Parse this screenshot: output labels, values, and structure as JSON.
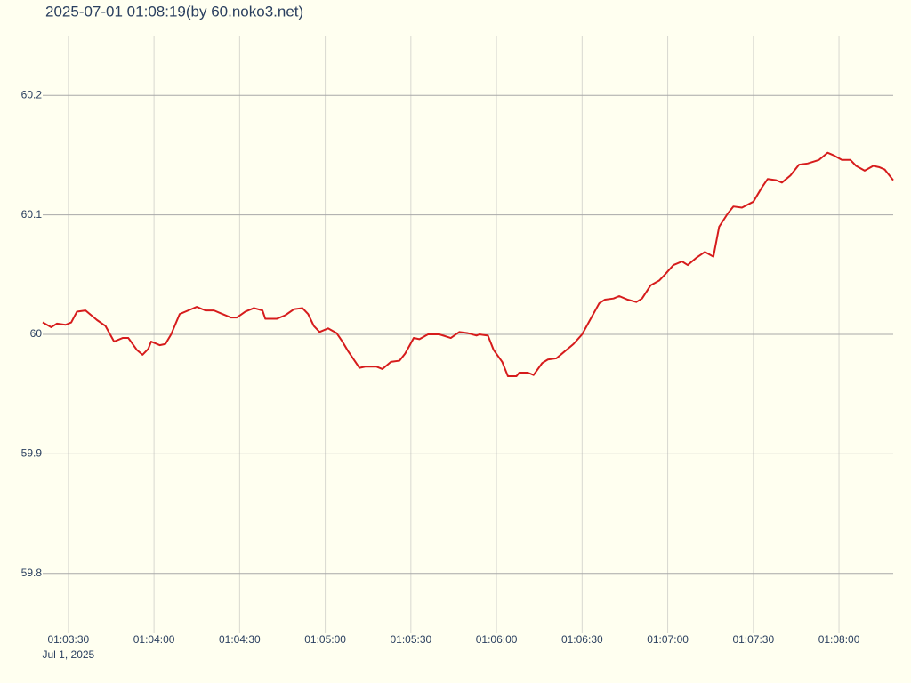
{
  "chart_data": {
    "type": "line",
    "title": "2025-07-01 01:08:19(by 60.noko3.net)",
    "x": [
      "2025-07-01 01:03:21",
      "2025-07-01 01:03:24",
      "2025-07-01 01:03:26",
      "2025-07-01 01:03:29",
      "2025-07-01 01:03:31",
      "2025-07-01 01:03:33",
      "2025-07-01 01:03:36",
      "2025-07-01 01:03:40",
      "2025-07-01 01:03:43",
      "2025-07-01 01:03:46",
      "2025-07-01 01:03:49",
      "2025-07-01 01:03:51",
      "2025-07-01 01:03:54",
      "2025-07-01 01:03:56",
      "2025-07-01 01:03:58",
      "2025-07-01 01:03:59",
      "2025-07-01 01:04:02",
      "2025-07-01 01:04:04",
      "2025-07-01 01:04:06",
      "2025-07-01 01:04:09",
      "2025-07-01 01:04:12",
      "2025-07-01 01:04:15",
      "2025-07-01 01:04:18",
      "2025-07-01 01:04:21",
      "2025-07-01 01:04:24",
      "2025-07-01 01:04:27",
      "2025-07-01 01:04:29",
      "2025-07-01 01:04:32",
      "2025-07-01 01:04:35",
      "2025-07-01 01:04:38",
      "2025-07-01 01:04:39",
      "2025-07-01 01:04:43",
      "2025-07-01 01:04:46",
      "2025-07-01 01:04:49",
      "2025-07-01 01:04:52",
      "2025-07-01 01:04:54",
      "2025-07-01 01:04:56",
      "2025-07-01 01:04:58",
      "2025-07-01 01:05:01",
      "2025-07-01 01:05:04",
      "2025-07-01 01:05:06",
      "2025-07-01 01:05:08",
      "2025-07-01 01:05:12",
      "2025-07-01 01:05:14",
      "2025-07-01 01:05:18",
      "2025-07-01 01:05:20",
      "2025-07-01 01:05:23",
      "2025-07-01 01:05:26",
      "2025-07-01 01:05:28",
      "2025-07-01 01:05:31",
      "2025-07-01 01:05:33",
      "2025-07-01 01:05:36",
      "2025-07-01 01:05:40",
      "2025-07-01 01:05:44",
      "2025-07-01 01:05:47",
      "2025-07-01 01:05:50",
      "2025-07-01 01:05:53",
      "2025-07-01 01:05:54",
      "2025-07-01 01:05:57",
      "2025-07-01 01:05:59",
      "2025-07-01 01:06:02",
      "2025-07-01 01:06:04",
      "2025-07-01 01:06:07",
      "2025-07-01 01:06:08",
      "2025-07-01 01:06:11",
      "2025-07-01 01:06:13",
      "2025-07-01 01:06:16",
      "2025-07-01 01:06:18",
      "2025-07-01 01:06:21",
      "2025-07-01 01:06:24",
      "2025-07-01 01:06:27",
      "2025-07-01 01:06:30",
      "2025-07-01 01:06:33",
      "2025-07-01 01:06:36",
      "2025-07-01 01:06:38",
      "2025-07-01 01:06:41",
      "2025-07-01 01:06:43",
      "2025-07-01 01:06:46",
      "2025-07-01 01:06:49",
      "2025-07-01 01:06:51",
      "2025-07-01 01:06:54",
      "2025-07-01 01:06:57",
      "2025-07-01 01:06:59",
      "2025-07-01 01:07:02",
      "2025-07-01 01:07:05",
      "2025-07-01 01:07:07",
      "2025-07-01 01:07:10",
      "2025-07-01 01:07:13",
      "2025-07-01 01:07:16",
      "2025-07-01 01:07:18",
      "2025-07-01 01:07:21",
      "2025-07-01 01:07:23",
      "2025-07-01 01:07:26",
      "2025-07-01 01:07:30",
      "2025-07-01 01:07:33",
      "2025-07-01 01:07:35",
      "2025-07-01 01:07:38",
      "2025-07-01 01:07:40",
      "2025-07-01 01:07:43",
      "2025-07-01 01:07:46",
      "2025-07-01 01:07:49",
      "2025-07-01 01:07:53",
      "2025-07-01 01:07:56",
      "2025-07-01 01:07:58",
      "2025-07-01 01:08:01",
      "2025-07-01 01:08:04",
      "2025-07-01 01:08:06",
      "2025-07-01 01:08:09",
      "2025-07-01 01:08:12",
      "2025-07-01 01:08:14",
      "2025-07-01 01:08:16",
      "2025-07-01 01:08:19"
    ],
    "values": [
      60.01,
      60.006,
      60.009,
      60.008,
      60.01,
      60.019,
      60.02,
      60.012,
      60.007,
      59.994,
      59.997,
      59.997,
      59.987,
      59.983,
      59.988,
      59.994,
      59.991,
      59.992,
      60.0,
      60.017,
      60.02,
      60.023,
      60.02,
      60.02,
      60.017,
      60.014,
      60.014,
      60.019,
      60.022,
      60.02,
      60.013,
      60.013,
      60.016,
      60.021,
      60.022,
      60.017,
      60.007,
      60.002,
      60.005,
      60.001,
      59.994,
      59.986,
      59.972,
      59.973,
      59.973,
      59.971,
      59.977,
      59.978,
      59.984,
      59.997,
      59.996,
      60.0,
      60.0,
      59.997,
      60.002,
      60.001,
      59.999,
      60.0,
      59.999,
      59.987,
      59.977,
      59.965,
      59.965,
      59.968,
      59.968,
      59.966,
      59.976,
      59.979,
      59.98,
      59.986,
      59.992,
      60.0,
      60.013,
      60.026,
      60.029,
      60.03,
      60.032,
      60.029,
      60.027,
      60.03,
      60.041,
      60.045,
      60.05,
      60.058,
      60.061,
      60.058,
      60.064,
      60.069,
      60.065,
      60.09,
      60.101,
      60.107,
      60.106,
      60.111,
      60.123,
      60.13,
      60.129,
      60.127,
      60.133,
      60.142,
      60.143,
      60.146,
      60.152,
      60.15,
      60.146,
      60.146,
      60.141,
      60.137,
      60.141,
      60.14,
      60.138,
      60.129
    ],
    "color": "#d61c1c",
    "xlim": [
      "2025-07-01 01:03:21",
      "2025-07-01 01:08:19"
    ],
    "xticks": [
      {
        "value": "2025-07-01 01:03:30",
        "label": "01:03:30"
      },
      {
        "value": "2025-07-01 01:04:00",
        "label": "01:04:00"
      },
      {
        "value": "2025-07-01 01:04:30",
        "label": "01:04:30"
      },
      {
        "value": "2025-07-01 01:05:00",
        "label": "01:05:00"
      },
      {
        "value": "2025-07-01 01:05:30",
        "label": "01:05:30"
      },
      {
        "value": "2025-07-01 01:06:00",
        "label": "01:06:00"
      },
      {
        "value": "2025-07-01 01:06:30",
        "label": "01:06:30"
      },
      {
        "value": "2025-07-01 01:07:00",
        "label": "01:07:00"
      },
      {
        "value": "2025-07-01 01:07:30",
        "label": "01:07:30"
      },
      {
        "value": "2025-07-01 01:08:00",
        "label": "01:08:00"
      }
    ],
    "xtick_date_label": "Jul 1, 2025",
    "ylim": [
      59.75,
      60.25
    ],
    "yticks": [
      59.8,
      59.9,
      60,
      60.1,
      60.2
    ],
    "grid": true
  }
}
